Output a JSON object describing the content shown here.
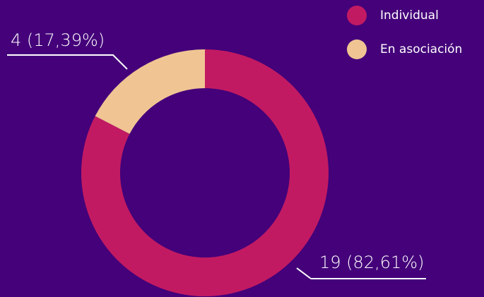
{
  "chart_data": {
    "type": "donut",
    "categories": [
      "Individual",
      "En asociación"
    ],
    "values": [
      19,
      4
    ],
    "value_labels": [
      "19 (82,61%)",
      "4 (17,39%)"
    ],
    "colors": [
      "#c21a62",
      "#f0c593"
    ]
  }
}
